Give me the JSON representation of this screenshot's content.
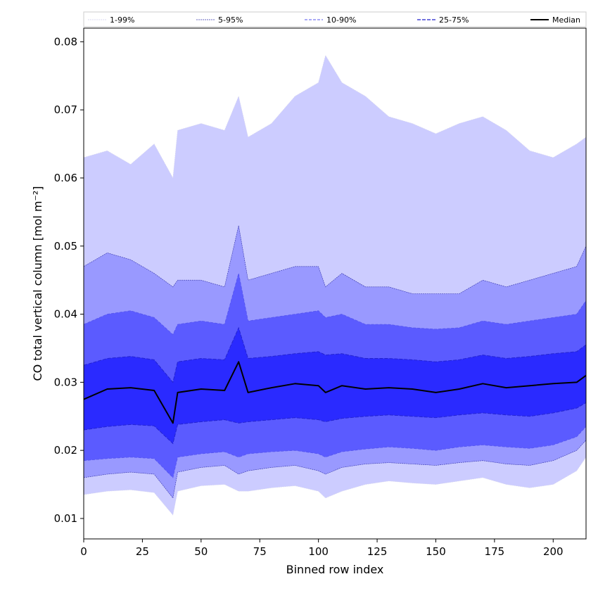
{
  "chart_data": {
    "type": "area",
    "title": "",
    "xlabel": "Binned row index",
    "ylabel": "CO total vertical column [mol m⁻²]",
    "xlim": [
      0,
      214
    ],
    "ylim": [
      0.007,
      0.082
    ],
    "xticks": [
      0,
      25,
      50,
      75,
      100,
      125,
      150,
      175,
      200
    ],
    "yticks": [
      0.01,
      0.02,
      0.03,
      0.04,
      0.05,
      0.06,
      0.07,
      0.08
    ],
    "grid": false,
    "legend": {
      "placement": "top",
      "entries": [
        "1-99%",
        "5-95%",
        "10-90%",
        "25-75%",
        "Median"
      ]
    },
    "colors": {
      "band_1_99": "#ccccff",
      "band_5_95": "#9999ff",
      "band_10_90": "#5b5bff",
      "band_25_75": "#2a2aff",
      "line_1_99": "#d8d8f0",
      "line_5_95": "#3333aa",
      "line_10_90": "#5555ee",
      "line_25_75": "#2222cc",
      "median": "#000000"
    },
    "x": [
      0,
      10,
      20,
      30,
      38,
      40,
      50,
      60,
      66,
      70,
      80,
      90,
      100,
      103,
      110,
      120,
      130,
      140,
      150,
      160,
      170,
      180,
      190,
      200,
      210,
      214
    ],
    "series": [
      {
        "name": "1-99%",
        "lower": [
          0.0135,
          0.014,
          0.0142,
          0.0138,
          0.0105,
          0.014,
          0.0148,
          0.015,
          0.014,
          0.014,
          0.0145,
          0.0148,
          0.014,
          0.013,
          0.014,
          0.015,
          0.0155,
          0.0152,
          0.015,
          0.0155,
          0.016,
          0.015,
          0.0145,
          0.015,
          0.017,
          0.019
        ],
        "upper": [
          0.063,
          0.064,
          0.062,
          0.065,
          0.06,
          0.067,
          0.068,
          0.067,
          0.072,
          0.066,
          0.068,
          0.072,
          0.074,
          0.078,
          0.074,
          0.072,
          0.069,
          0.068,
          0.0665,
          0.068,
          0.069,
          0.067,
          0.064,
          0.063,
          0.065,
          0.066
        ]
      },
      {
        "name": "5-95%",
        "lower": [
          0.016,
          0.0165,
          0.0168,
          0.0165,
          0.013,
          0.0168,
          0.0175,
          0.0178,
          0.0165,
          0.017,
          0.0175,
          0.0178,
          0.017,
          0.0165,
          0.0175,
          0.018,
          0.0182,
          0.018,
          0.0178,
          0.0182,
          0.0185,
          0.018,
          0.0178,
          0.0185,
          0.02,
          0.0215
        ],
        "upper": [
          0.047,
          0.049,
          0.048,
          0.046,
          0.044,
          0.045,
          0.045,
          0.044,
          0.053,
          0.045,
          0.046,
          0.047,
          0.047,
          0.044,
          0.046,
          0.044,
          0.044,
          0.043,
          0.043,
          0.043,
          0.045,
          0.044,
          0.045,
          0.046,
          0.047,
          0.05
        ]
      },
      {
        "name": "10-90%",
        "lower": [
          0.0185,
          0.0188,
          0.019,
          0.0188,
          0.016,
          0.019,
          0.0195,
          0.0198,
          0.019,
          0.0195,
          0.0198,
          0.02,
          0.0195,
          0.019,
          0.0198,
          0.0202,
          0.0205,
          0.0203,
          0.02,
          0.0205,
          0.0208,
          0.0205,
          0.0203,
          0.0208,
          0.022,
          0.0235
        ],
        "upper": [
          0.0385,
          0.04,
          0.0405,
          0.0395,
          0.037,
          0.0385,
          0.039,
          0.0385,
          0.046,
          0.039,
          0.0395,
          0.04,
          0.0405,
          0.0395,
          0.04,
          0.0385,
          0.0385,
          0.038,
          0.0378,
          0.038,
          0.039,
          0.0385,
          0.039,
          0.0395,
          0.04,
          0.042
        ]
      },
      {
        "name": "25-75%",
        "lower": [
          0.023,
          0.0235,
          0.0238,
          0.0236,
          0.021,
          0.0238,
          0.0242,
          0.0245,
          0.024,
          0.0242,
          0.0245,
          0.0248,
          0.0245,
          0.0242,
          0.0247,
          0.025,
          0.0252,
          0.025,
          0.0248,
          0.0252,
          0.0255,
          0.0252,
          0.025,
          0.0255,
          0.0262,
          0.027
        ],
        "upper": [
          0.0325,
          0.0335,
          0.0338,
          0.0333,
          0.03,
          0.033,
          0.0335,
          0.0333,
          0.038,
          0.0335,
          0.0338,
          0.0342,
          0.0345,
          0.034,
          0.0342,
          0.0335,
          0.0335,
          0.0333,
          0.033,
          0.0333,
          0.034,
          0.0335,
          0.0338,
          0.0342,
          0.0345,
          0.0355
        ]
      },
      {
        "name": "Median",
        "values": [
          0.0275,
          0.029,
          0.0292,
          0.0288,
          0.024,
          0.0285,
          0.029,
          0.0288,
          0.033,
          0.0285,
          0.0292,
          0.0298,
          0.0295,
          0.0285,
          0.0295,
          0.029,
          0.0292,
          0.029,
          0.0285,
          0.029,
          0.0298,
          0.0292,
          0.0295,
          0.0298,
          0.03,
          0.031
        ]
      }
    ]
  }
}
